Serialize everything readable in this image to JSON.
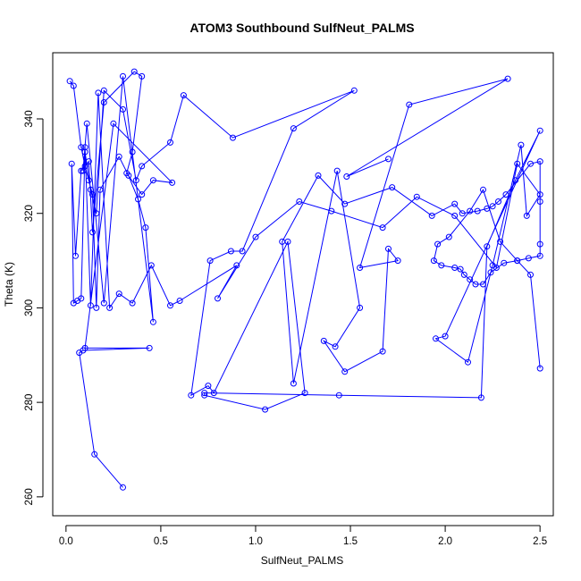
{
  "chart_data": {
    "type": "line",
    "title": "ATOM3 Southbound SulfNeut_PALMS",
    "xlabel": "SulfNeut_PALMS",
    "ylabel": "Theta (K)",
    "xlim": [
      -0.07,
      2.57
    ],
    "ylim": [
      256,
      354
    ],
    "x_ticks": [
      0.0,
      0.5,
      1.0,
      1.5,
      2.0,
      2.5
    ],
    "y_ticks": [
      260,
      280,
      300,
      320,
      340
    ],
    "x_tick_labels": [
      "0.0",
      "0.5",
      "1.0",
      "1.5",
      "2.0",
      "2.5"
    ],
    "y_tick_labels": [
      "260",
      "280",
      "300",
      "320",
      "340"
    ],
    "grid": false,
    "markers": "open-circle",
    "color": "#0000ff",
    "series": [
      {
        "x": [
          0.02,
          0.04,
          0.08,
          0.1,
          0.12,
          0.14,
          0.16,
          0.18,
          0.28,
          0.33,
          0.38,
          0.42,
          0.46,
          0.3,
          0.2,
          0.11,
          0.09,
          0.1,
          0.13,
          0.16,
          0.2,
          0.3,
          0.37,
          0.4,
          0.55,
          0.62,
          0.88,
          1.52,
          1.2,
          0.93,
          0.87,
          0.76,
          0.66,
          0.75,
          0.78,
          1.17,
          1.26,
          1.05,
          0.73,
          0.73,
          1.44,
          2.19,
          2.22,
          2.37,
          2.5,
          2.0,
          1.95,
          2.12,
          2.25,
          2.4,
          2.43,
          2.5,
          2.38,
          2.27,
          2.05,
          1.85,
          1.67,
          1.4,
          1.23,
          1.0,
          0.8,
          0.9,
          0.6,
          0.55,
          0.45,
          0.35,
          0.28,
          0.23,
          0.17,
          0.13,
          0.1,
          0.08,
          0.06,
          0.04,
          0.03,
          0.05,
          0.08,
          0.12,
          0.14,
          0.2,
          0.36,
          0.4,
          0.35,
          0.32,
          0.4,
          0.46,
          0.56,
          0.25,
          0.1,
          0.44,
          0.09,
          0.07,
          0.15,
          0.3
        ],
        "y": [
          348,
          347,
          334,
          330,
          327,
          324,
          300,
          325,
          332,
          328,
          323,
          317,
          297,
          349,
          301,
          339,
          329,
          333,
          325,
          320,
          346,
          342,
          327,
          330,
          335,
          345,
          336,
          346,
          338,
          312,
          312,
          310,
          281.5,
          283.5,
          282,
          314,
          282,
          278.5,
          281.5,
          282,
          281.5,
          281,
          313,
          327,
          337.5,
          294,
          293.5,
          288.5,
          309,
          334.5,
          319.5,
          324,
          330.5,
          308.5,
          319.5,
          323.5,
          317,
          320.5,
          322.5,
          315,
          302,
          309,
          301.5,
          300.5,
          309,
          301,
          303,
          300,
          345.5,
          300.5,
          334,
          302,
          301.5,
          301,
          330.5,
          311,
          329,
          331,
          316,
          343.5,
          350,
          349,
          333,
          328.5,
          324,
          327,
          326.5,
          339,
          291.5,
          291.5,
          291,
          290.5,
          269,
          262
        ]
      },
      {
        "x": [
          1.7,
          1.48,
          2.33,
          1.81,
          1.55,
          1.75,
          1.7,
          1.67,
          1.47,
          1.36,
          1.42,
          1.55,
          1.43,
          1.2,
          1.14,
          1.33,
          1.47,
          1.72,
          1.93,
          2.05,
          2.09,
          2.17,
          2.22,
          2.25,
          2.28,
          2.32,
          2.45,
          2.5,
          2.5,
          2.5,
          2.5,
          2.44,
          2.38,
          2.31,
          2.24,
          2.2,
          2.16,
          2.13,
          2.1,
          2.08,
          2.05,
          1.98,
          1.94,
          1.96,
          2.02,
          2.13,
          2.2,
          2.29,
          2.38,
          2.45,
          2.5
        ],
        "y": [
          331.5,
          327.8,
          348.5,
          343,
          308.5,
          310,
          312.5,
          290.8,
          286.5,
          293,
          291.8,
          300,
          329,
          284,
          314,
          328,
          322,
          325.5,
          319.5,
          322,
          320,
          320.5,
          321,
          321.5,
          322.5,
          324,
          330.5,
          331,
          322.5,
          313.5,
          311,
          310.5,
          310,
          309.5,
          307.5,
          305,
          305,
          306,
          307,
          308.2,
          308.5,
          309,
          310,
          313.5,
          315,
          320.5,
          325,
          314,
          310,
          307,
          287.2
        ]
      }
    ]
  }
}
